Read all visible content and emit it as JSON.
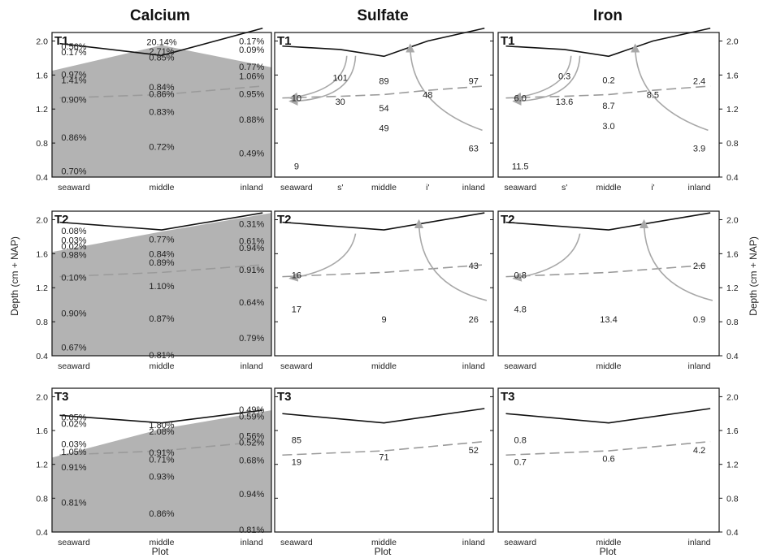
{
  "column_titles": [
    "Calcium",
    "Sulfate",
    "Iron"
  ],
  "ylabel_left": "Depth (cm + NAP)",
  "ylabel_right": "Depth (cm + NAP)",
  "xlabel": "Plot",
  "colors": {
    "fill": "#b3b3b3",
    "surface_line": "#111111",
    "dashed_line": "#9a9a9a",
    "arrow": "#a8a8a8"
  },
  "chart_data": [
    {
      "type": "line",
      "panel": "Calcium T1",
      "row_label": "T1",
      "categories": [
        "seaward",
        "middle",
        "inland"
      ],
      "ylim": [
        0.4,
        2.1
      ],
      "yticks": [
        0.4,
        0.8,
        1.2,
        1.6,
        2.0
      ],
      "surface": [
        1.97,
        1.83,
        2.15
      ],
      "shaded_top": [
        1.65,
        1.95,
        1.69
      ],
      "dashed_line": [
        1.33,
        1.37,
        1.47
      ],
      "annotations": [
        {
          "plot": "seaward",
          "depth": 1.94,
          "text": "0.56%"
        },
        {
          "plot": "seaward",
          "depth": 1.87,
          "text": "0.17%"
        },
        {
          "plot": "seaward",
          "depth": 1.61,
          "text": "0.97%"
        },
        {
          "plot": "seaward",
          "depth": 1.54,
          "text": "1.41%"
        },
        {
          "plot": "seaward",
          "depth": 1.31,
          "text": "0.90%"
        },
        {
          "plot": "seaward",
          "depth": 0.87,
          "text": "0.86%"
        },
        {
          "plot": "seaward",
          "depth": 0.47,
          "text": "0.70%"
        },
        {
          "plot": "middle",
          "depth": 1.99,
          "text": "20.14%"
        },
        {
          "plot": "middle",
          "depth": 1.88,
          "text": "2.71%"
        },
        {
          "plot": "middle",
          "depth": 1.81,
          "text": "0.85%"
        },
        {
          "plot": "middle",
          "depth": 1.46,
          "text": "0.84%"
        },
        {
          "plot": "middle",
          "depth": 1.38,
          "text": "0.86%"
        },
        {
          "plot": "middle",
          "depth": 1.17,
          "text": "0.83%"
        },
        {
          "plot": "middle",
          "depth": 0.76,
          "text": "0.72%"
        },
        {
          "plot": "inland",
          "depth": 2.0,
          "text": "0.17%"
        },
        {
          "plot": "inland",
          "depth": 1.9,
          "text": "0.09%"
        },
        {
          "plot": "inland",
          "depth": 1.7,
          "text": "0.77%"
        },
        {
          "plot": "inland",
          "depth": 1.59,
          "text": "1.06%"
        },
        {
          "plot": "inland",
          "depth": 1.38,
          "text": "0.95%"
        },
        {
          "plot": "inland",
          "depth": 1.08,
          "text": "0.88%"
        },
        {
          "plot": "inland",
          "depth": 0.68,
          "text": "0.49%"
        }
      ]
    },
    {
      "type": "line",
      "panel": "Sulfate T1",
      "row_label": "T1",
      "categories": [
        "seaward",
        "s'",
        "middle",
        "i'",
        "inland"
      ],
      "ylim": [
        0.4,
        2.1
      ],
      "surface": [
        1.94,
        1.9,
        1.82,
        2.0,
        2.15
      ],
      "dashed_line": [
        1.33,
        1.35,
        1.37,
        1.42,
        1.47
      ],
      "annotations": [
        {
          "plot": "seaward",
          "depth": 1.33,
          "text": "10"
        },
        {
          "plot": "seaward",
          "depth": 0.53,
          "text": "9"
        },
        {
          "plot": "s'",
          "depth": 1.57,
          "text": "101"
        },
        {
          "plot": "s'",
          "depth": 1.29,
          "text": "30"
        },
        {
          "plot": "middle",
          "depth": 1.53,
          "text": "89"
        },
        {
          "plot": "middle",
          "depth": 1.21,
          "text": "54"
        },
        {
          "plot": "middle",
          "depth": 0.98,
          "text": "49"
        },
        {
          "plot": "i'",
          "depth": 1.37,
          "text": "48"
        },
        {
          "plot": "inland",
          "depth": 1.53,
          "text": "97"
        },
        {
          "plot": "inland",
          "depth": 0.74,
          "text": "63"
        }
      ]
    },
    {
      "type": "line",
      "panel": "Iron T1",
      "row_label": "T1",
      "categories": [
        "seaward",
        "s'",
        "middle",
        "i'",
        "inland"
      ],
      "ylim": [
        0.4,
        2.1
      ],
      "surface": [
        1.94,
        1.9,
        1.82,
        2.0,
        2.15
      ],
      "dashed_line": [
        1.33,
        1.35,
        1.37,
        1.42,
        1.47
      ],
      "annotations": [
        {
          "plot": "seaward",
          "depth": 1.33,
          "text": "6.0"
        },
        {
          "plot": "seaward",
          "depth": 0.53,
          "text": "11.5"
        },
        {
          "plot": "s'",
          "depth": 1.59,
          "text": "0.3"
        },
        {
          "plot": "s'",
          "depth": 1.29,
          "text": "13.6"
        },
        {
          "plot": "middle",
          "depth": 1.54,
          "text": "0.2"
        },
        {
          "plot": "middle",
          "depth": 1.24,
          "text": "8.7"
        },
        {
          "plot": "middle",
          "depth": 1.0,
          "text": "3.0"
        },
        {
          "plot": "i'",
          "depth": 1.37,
          "text": "8.5"
        },
        {
          "plot": "inland",
          "depth": 1.53,
          "text": "2.4"
        },
        {
          "plot": "inland",
          "depth": 0.74,
          "text": "3.9"
        }
      ]
    },
    {
      "type": "line",
      "panel": "Calcium T2",
      "row_label": "T2",
      "categories": [
        "seaward",
        "middle",
        "inland"
      ],
      "ylim": [
        0.4,
        2.1
      ],
      "surface": [
        1.97,
        1.88,
        2.08
      ],
      "shaded_top": [
        1.62,
        1.86,
        2.08
      ],
      "dashed_line": [
        1.33,
        1.38,
        1.47
      ],
      "annotations": [
        {
          "plot": "seaward",
          "depth": 1.87,
          "text": "0.08%"
        },
        {
          "plot": "seaward",
          "depth": 1.76,
          "text": "0.03%"
        },
        {
          "plot": "seaward",
          "depth": 1.69,
          "text": "0.02%"
        },
        {
          "plot": "seaward",
          "depth": 1.59,
          "text": "0.98%"
        },
        {
          "plot": "seaward",
          "depth": 1.32,
          "text": "0.10%"
        },
        {
          "plot": "seaward",
          "depth": 0.9,
          "text": "0.90%"
        },
        {
          "plot": "seaward",
          "depth": 0.5,
          "text": "0.67%"
        },
        {
          "plot": "middle",
          "depth": 1.77,
          "text": "0.77%"
        },
        {
          "plot": "middle",
          "depth": 1.6,
          "text": "0.84%"
        },
        {
          "plot": "middle",
          "depth": 1.5,
          "text": "0.89%"
        },
        {
          "plot": "middle",
          "depth": 1.22,
          "text": "1.10%"
        },
        {
          "plot": "middle",
          "depth": 0.84,
          "text": "0.87%"
        },
        {
          "plot": "middle",
          "depth": 0.41,
          "text": "0.81%"
        },
        {
          "plot": "inland",
          "depth": 1.95,
          "text": "0.31%"
        },
        {
          "plot": "inland",
          "depth": 1.75,
          "text": "0.61%"
        },
        {
          "plot": "inland",
          "depth": 1.67,
          "text": "0.94%"
        },
        {
          "plot": "inland",
          "depth": 1.41,
          "text": "0.91%"
        },
        {
          "plot": "inland",
          "depth": 1.03,
          "text": "0.64%"
        },
        {
          "plot": "inland",
          "depth": 0.61,
          "text": "0.79%"
        }
      ]
    },
    {
      "type": "line",
      "panel": "Sulfate T2",
      "row_label": "T2",
      "categories": [
        "seaward",
        "middle",
        "inland"
      ],
      "ylim": [
        0.4,
        2.1
      ],
      "surface": [
        1.97,
        1.88,
        2.08
      ],
      "dashed_line": [
        1.33,
        1.38,
        1.47
      ],
      "annotations": [
        {
          "plot": "seaward",
          "depth": 1.35,
          "text": "16"
        },
        {
          "plot": "seaward",
          "depth": 0.95,
          "text": "17"
        },
        {
          "plot": "middle",
          "depth": 0.83,
          "text": "9"
        },
        {
          "plot": "inland",
          "depth": 1.46,
          "text": "43"
        },
        {
          "plot": "inland",
          "depth": 0.83,
          "text": "26"
        }
      ]
    },
    {
      "type": "line",
      "panel": "Iron T2",
      "row_label": "T2",
      "categories": [
        "seaward",
        "middle",
        "inland"
      ],
      "ylim": [
        0.4,
        2.1
      ],
      "surface": [
        1.97,
        1.88,
        2.08
      ],
      "dashed_line": [
        1.33,
        1.38,
        1.47
      ],
      "annotations": [
        {
          "plot": "seaward",
          "depth": 1.35,
          "text": "0.8"
        },
        {
          "plot": "seaward",
          "depth": 0.95,
          "text": "4.8"
        },
        {
          "plot": "middle",
          "depth": 0.83,
          "text": "13.4"
        },
        {
          "plot": "inland",
          "depth": 1.46,
          "text": "2.6"
        },
        {
          "plot": "inland",
          "depth": 0.83,
          "text": "0.9"
        }
      ]
    },
    {
      "type": "line",
      "panel": "Calcium T3",
      "row_label": "T3",
      "categories": [
        "seaward",
        "middle",
        "inland"
      ],
      "ylim": [
        0.4,
        2.1
      ],
      "surface": [
        1.78,
        1.69,
        1.84
      ],
      "shaded_top": [
        1.28,
        1.62,
        1.84
      ],
      "dashed_line": [
        1.31,
        1.36,
        1.47
      ],
      "annotations": [
        {
          "plot": "seaward",
          "depth": 1.76,
          "text": "0.05%"
        },
        {
          "plot": "seaward",
          "depth": 1.68,
          "text": "0.02%"
        },
        {
          "plot": "seaward",
          "depth": 1.44,
          "text": "0.03%"
        },
        {
          "plot": "seaward",
          "depth": 1.35,
          "text": "1.05%"
        },
        {
          "plot": "seaward",
          "depth": 1.17,
          "text": "0.91%"
        },
        {
          "plot": "seaward",
          "depth": 0.75,
          "text": "0.81%"
        },
        {
          "plot": "middle",
          "depth": 1.67,
          "text": "1.80%"
        },
        {
          "plot": "middle",
          "depth": 1.59,
          "text": "2.08%"
        },
        {
          "plot": "middle",
          "depth": 1.34,
          "text": "0.91%"
        },
        {
          "plot": "middle",
          "depth": 1.26,
          "text": "0.71%"
        },
        {
          "plot": "middle",
          "depth": 1.06,
          "text": "0.93%"
        },
        {
          "plot": "middle",
          "depth": 0.62,
          "text": "0.86%"
        },
        {
          "plot": "inland",
          "depth": 1.85,
          "text": "0.49%"
        },
        {
          "plot": "inland",
          "depth": 1.77,
          "text": "0.59%"
        },
        {
          "plot": "inland",
          "depth": 1.54,
          "text": "0.56%"
        },
        {
          "plot": "inland",
          "depth": 1.46,
          "text": "0.52%"
        },
        {
          "plot": "inland",
          "depth": 1.25,
          "text": "0.68%"
        },
        {
          "plot": "inland",
          "depth": 0.85,
          "text": "0.94%"
        },
        {
          "plot": "inland",
          "depth": 0.43,
          "text": "0.81%"
        }
      ]
    },
    {
      "type": "line",
      "panel": "Sulfate T3",
      "row_label": "T3",
      "categories": [
        "seaward",
        "middle",
        "inland"
      ],
      "ylim": [
        0.4,
        2.1
      ],
      "surface": [
        1.8,
        1.69,
        1.86
      ],
      "dashed_line": [
        1.31,
        1.36,
        1.47
      ],
      "annotations": [
        {
          "plot": "seaward",
          "depth": 1.49,
          "text": "85"
        },
        {
          "plot": "seaward",
          "depth": 1.23,
          "text": "19"
        },
        {
          "plot": "middle",
          "depth": 1.29,
          "text": "71"
        },
        {
          "plot": "inland",
          "depth": 1.37,
          "text": "52"
        }
      ]
    },
    {
      "type": "line",
      "panel": "Iron T3",
      "row_label": "T3",
      "categories": [
        "seaward",
        "middle",
        "inland"
      ],
      "ylim": [
        0.4,
        2.1
      ],
      "surface": [
        1.8,
        1.69,
        1.86
      ],
      "dashed_line": [
        1.31,
        1.36,
        1.47
      ],
      "annotations": [
        {
          "plot": "seaward",
          "depth": 1.49,
          "text": "0.8"
        },
        {
          "plot": "seaward",
          "depth": 1.23,
          "text": "0.7"
        },
        {
          "plot": "middle",
          "depth": 1.27,
          "text": "0.6"
        },
        {
          "plot": "inland",
          "depth": 1.37,
          "text": "4.2"
        }
      ]
    }
  ]
}
